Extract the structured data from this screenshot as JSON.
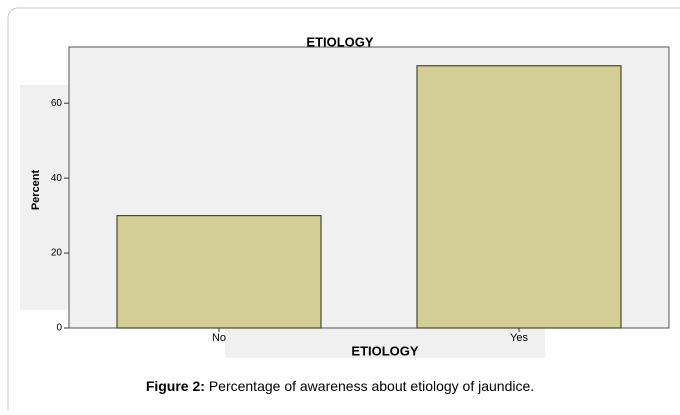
{
  "chart_data": {
    "type": "bar",
    "title": "ETIOLOGY",
    "x_label": "ETIOLOGY",
    "y_label": "Percent",
    "categories": [
      "No",
      "Yes"
    ],
    "values": [
      30,
      70
    ],
    "color": "#d3cd96",
    "ylim": [
      0,
      75
    ],
    "yticks": [
      0,
      20,
      40,
      60
    ]
  },
  "caption": {
    "label": "Figure 2:",
    "text": "Percentage of awareness about etiology of jaundice."
  }
}
